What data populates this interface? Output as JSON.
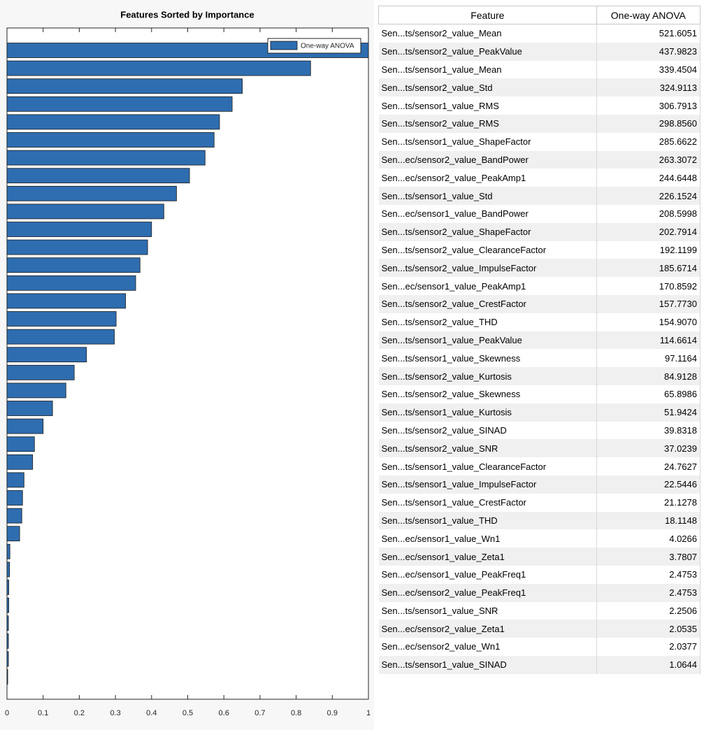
{
  "chart_data": {
    "type": "barh",
    "title": "Features Sorted by Importance",
    "series": [
      {
        "name": "One-way ANOVA",
        "color": "#2e6db0",
        "values": [
          1,
          0.84,
          0.651,
          0.623,
          0.588,
          0.573,
          0.548,
          0.505,
          0.469,
          0.434,
          0.4,
          0.389,
          0.368,
          0.356,
          0.328,
          0.302,
          0.297,
          0.22,
          0.186,
          0.163,
          0.126,
          0.1,
          0.076,
          0.071,
          0.047,
          0.043,
          0.041,
          0.035,
          0.008,
          0.007,
          0.005,
          0.005,
          0.004,
          0.004,
          0.004,
          0.002
        ]
      }
    ],
    "xlim": [
      0,
      1
    ],
    "xticks": [
      0,
      0.1,
      0.2,
      0.3,
      0.4,
      0.5,
      0.6,
      0.7,
      0.8,
      0.9,
      1
    ],
    "legend": "upper right"
  },
  "table": {
    "headers": [
      "Feature",
      "One-way ANOVA"
    ],
    "rows": [
      [
        "Sen...ts/sensor2_value_Mean",
        "521.6051"
      ],
      [
        "Sen...ts/sensor2_value_PeakValue",
        "437.9823"
      ],
      [
        "Sen...ts/sensor1_value_Mean",
        "339.4504"
      ],
      [
        "Sen...ts/sensor2_value_Std",
        "324.9113"
      ],
      [
        "Sen...ts/sensor1_value_RMS",
        "306.7913"
      ],
      [
        "Sen...ts/sensor2_value_RMS",
        "298.8560"
      ],
      [
        "Sen...ts/sensor1_value_ShapeFactor",
        "285.6622"
      ],
      [
        "Sen...ec/sensor2_value_BandPower",
        "263.3072"
      ],
      [
        "Sen...ec/sensor2_value_PeakAmp1",
        "244.6448"
      ],
      [
        "Sen...ts/sensor1_value_Std",
        "226.1524"
      ],
      [
        "Sen...ec/sensor1_value_BandPower",
        "208.5998"
      ],
      [
        "Sen...ts/sensor2_value_ShapeFactor",
        "202.7914"
      ],
      [
        "Sen...ts/sensor2_value_ClearanceFactor",
        "192.1199"
      ],
      [
        "Sen...ts/sensor2_value_ImpulseFactor",
        "185.6714"
      ],
      [
        "Sen...ec/sensor1_value_PeakAmp1",
        "170.8592"
      ],
      [
        "Sen...ts/sensor2_value_CrestFactor",
        "157.7730"
      ],
      [
        "Sen...ts/sensor2_value_THD",
        "154.9070"
      ],
      [
        "Sen...ts/sensor1_value_PeakValue",
        "114.6614"
      ],
      [
        "Sen...ts/sensor1_value_Skewness",
        "97.1164"
      ],
      [
        "Sen...ts/sensor2_value_Kurtosis",
        "84.9128"
      ],
      [
        "Sen...ts/sensor2_value_Skewness",
        "65.8986"
      ],
      [
        "Sen...ts/sensor1_value_Kurtosis",
        "51.9424"
      ],
      [
        "Sen...ts/sensor2_value_SINAD",
        "39.8318"
      ],
      [
        "Sen...ts/sensor2_value_SNR",
        "37.0239"
      ],
      [
        "Sen...ts/sensor1_value_ClearanceFactor",
        "24.7627"
      ],
      [
        "Sen...ts/sensor1_value_ImpulseFactor",
        "22.5446"
      ],
      [
        "Sen...ts/sensor1_value_CrestFactor",
        "21.1278"
      ],
      [
        "Sen...ts/sensor1_value_THD",
        "18.1148"
      ],
      [
        "Sen...ec/sensor1_value_Wn1",
        "4.0266"
      ],
      [
        "Sen...ec/sensor1_value_Zeta1",
        "3.7807"
      ],
      [
        "Sen...ec/sensor1_value_PeakFreq1",
        "2.4753"
      ],
      [
        "Sen...ec/sensor2_value_PeakFreq1",
        "2.4753"
      ],
      [
        "Sen...ts/sensor1_value_SNR",
        "2.2506"
      ],
      [
        "Sen...ec/sensor2_value_Zeta1",
        "2.0535"
      ],
      [
        "Sen...ec/sensor2_value_Wn1",
        "2.0377"
      ],
      [
        "Sen...ts/sensor1_value_SINAD",
        "1.0644"
      ]
    ]
  }
}
